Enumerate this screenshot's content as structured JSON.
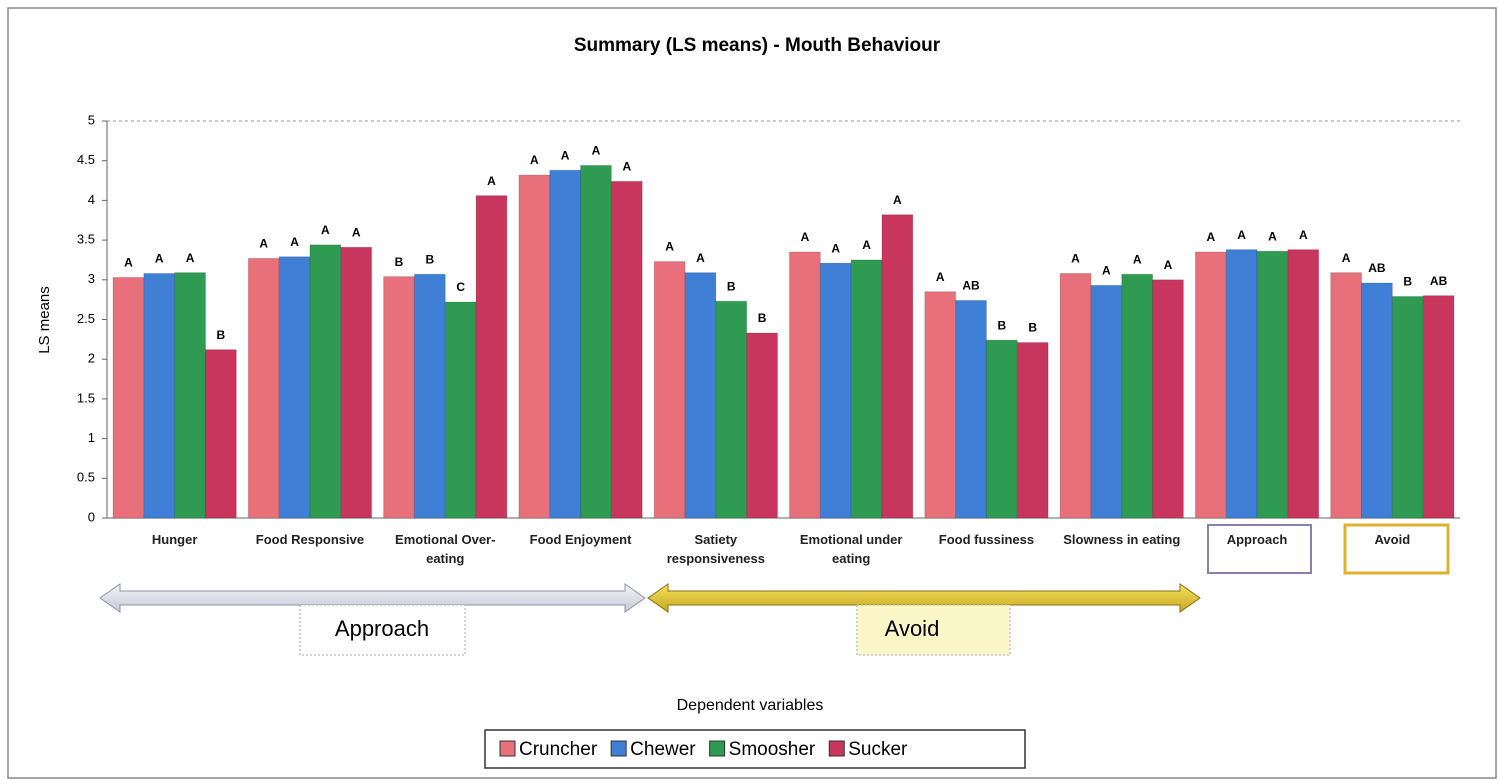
{
  "chart_data": {
    "type": "bar",
    "title": "Summary (LS means) - Mouth Behaviour",
    "y_label": "LS means",
    "x_label": "Dependent variables",
    "categories": [
      "Hunger",
      "Food Responsive",
      "Emotional Over-eating",
      "Food Enjoyment",
      "Satiety responsiveness",
      "Emotional under eating",
      "Food fussiness",
      "Slowness in eating",
      "Approach",
      "Avoid"
    ],
    "series": [
      {
        "name": "Cruncher",
        "color": "#e8707a",
        "values": [
          3.03,
          3.27,
          3.04,
          4.32,
          3.23,
          3.35,
          2.85,
          3.08,
          3.35,
          3.09
        ],
        "letters": [
          "A",
          "A",
          "B",
          "A",
          "A",
          "A",
          "A",
          "A",
          "A",
          "A"
        ]
      },
      {
        "name": "Chewer",
        "color": "#3f7fd6",
        "values": [
          3.08,
          3.29,
          3.07,
          4.38,
          3.09,
          3.21,
          2.74,
          2.93,
          3.38,
          2.96
        ],
        "letters": [
          "A",
          "A",
          "B",
          "A",
          "A",
          "A",
          "AB",
          "A",
          "A",
          "AB"
        ]
      },
      {
        "name": "Smoosher",
        "color": "#2e9a52",
        "values": [
          3.09,
          3.44,
          2.72,
          4.44,
          2.73,
          3.25,
          2.24,
          3.07,
          3.36,
          2.79
        ],
        "letters": [
          "A",
          "A",
          "C",
          "A",
          "B",
          "A",
          "B",
          "A",
          "A",
          "B"
        ]
      },
      {
        "name": "Sucker",
        "color": "#c8365e",
        "values": [
          2.12,
          3.41,
          4.06,
          4.24,
          2.33,
          3.82,
          2.21,
          3.0,
          3.38,
          2.8
        ],
        "letters": [
          "B",
          "A",
          "A",
          "A",
          "B",
          "A",
          "B",
          "A",
          "A",
          "AB"
        ]
      }
    ],
    "groups": [
      {
        "label": "Approach"
      },
      {
        "label": "Avoid"
      }
    ],
    "ylim": [
      0,
      5
    ],
    "yticks": [
      0,
      0.5,
      1,
      1.5,
      2,
      2.5,
      3,
      3.5,
      4,
      4.5,
      5
    ],
    "grid": false,
    "legend": "bottom"
  }
}
